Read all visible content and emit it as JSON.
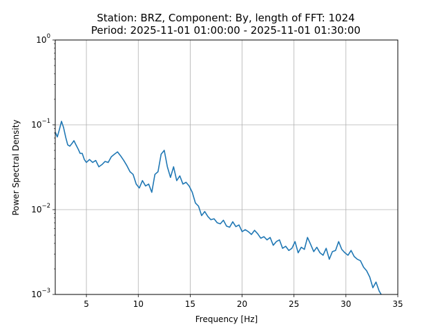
{
  "chart_data": {
    "type": "line",
    "title_line1": "Station: BRZ, Component: By, length of FFT: 1024",
    "title_line2": "Period: 2025-11-01 01:00:00 - 2025-11-01 01:30:00",
    "xlabel": "Frequency [Hz]",
    "ylabel": "Power Spectral Density",
    "xlim": [
      2.0,
      35.0
    ],
    "ylim": [
      0.001,
      1.0
    ],
    "yscale": "log",
    "grid": true,
    "x_ticks": [
      5,
      10,
      15,
      20,
      25,
      30,
      35
    ],
    "x_tick_labels": [
      "5",
      "10",
      "15",
      "20",
      "25",
      "30",
      "35"
    ],
    "y_ticks": [
      0.001,
      0.01,
      0.1,
      1
    ],
    "y_tick_labels": [
      {
        "base": "10",
        "exp": "−3"
      },
      {
        "base": "10",
        "exp": "−2"
      },
      {
        "base": "10",
        "exp": "−1"
      },
      {
        "base": "10",
        "exp": "0"
      }
    ],
    "line_color": "#1f77b4",
    "series": [
      {
        "x": [
          2.0,
          2.2,
          2.4,
          2.6,
          2.8,
          3.0,
          3.2,
          3.4,
          3.6,
          3.8,
          4.0,
          4.2,
          4.4,
          4.6,
          4.8,
          5.0,
          5.3,
          5.6,
          5.9,
          6.2,
          6.5,
          6.8,
          7.1,
          7.4,
          7.7,
          8.0,
          8.3,
          8.6,
          8.9,
          9.2,
          9.5,
          9.8,
          10.1,
          10.4,
          10.7,
          11.0,
          11.3,
          11.6,
          11.9,
          12.2,
          12.5,
          12.8,
          13.1,
          13.4,
          13.7,
          14.0,
          14.3,
          14.6,
          14.9,
          15.2,
          15.5,
          15.8,
          16.1,
          16.4,
          16.7,
          17.0,
          17.3,
          17.6,
          17.9,
          18.2,
          18.5,
          18.8,
          19.1,
          19.4,
          19.7,
          20.0,
          20.3,
          20.6,
          20.9,
          21.2,
          21.5,
          21.8,
          22.1,
          22.4,
          22.7,
          23.0,
          23.3,
          23.6,
          23.9,
          24.2,
          24.5,
          24.8,
          25.1,
          25.4,
          25.7,
          26.0,
          26.3,
          26.6,
          26.9,
          27.2,
          27.5,
          27.8,
          28.1,
          28.4,
          28.7,
          29.0,
          29.3,
          29.6,
          29.9,
          30.2,
          30.5,
          30.8,
          31.1,
          31.4,
          31.7,
          32.0,
          32.3,
          32.6,
          32.9,
          33.2,
          33.4
        ],
        "y": [
          0.082,
          0.072,
          0.088,
          0.11,
          0.093,
          0.072,
          0.058,
          0.056,
          0.06,
          0.065,
          0.058,
          0.052,
          0.046,
          0.046,
          0.039,
          0.036,
          0.039,
          0.036,
          0.038,
          0.032,
          0.034,
          0.037,
          0.036,
          0.042,
          0.045,
          0.048,
          0.043,
          0.038,
          0.033,
          0.028,
          0.026,
          0.02,
          0.018,
          0.022,
          0.019,
          0.02,
          0.016,
          0.026,
          0.028,
          0.045,
          0.05,
          0.032,
          0.024,
          0.032,
          0.022,
          0.025,
          0.02,
          0.021,
          0.019,
          0.016,
          0.012,
          0.011,
          0.0085,
          0.0095,
          0.0083,
          0.0076,
          0.0078,
          0.007,
          0.0068,
          0.0075,
          0.0064,
          0.0062,
          0.0072,
          0.0063,
          0.0066,
          0.0055,
          0.0058,
          0.0055,
          0.0051,
          0.0057,
          0.0052,
          0.0046,
          0.0048,
          0.0044,
          0.0047,
          0.0038,
          0.0042,
          0.0044,
          0.0035,
          0.0037,
          0.0033,
          0.0035,
          0.0042,
          0.0031,
          0.0036,
          0.0034,
          0.0047,
          0.0039,
          0.0032,
          0.0036,
          0.0031,
          0.0029,
          0.0035,
          0.0026,
          0.0032,
          0.0033,
          0.0042,
          0.0034,
          0.0031,
          0.0029,
          0.0033,
          0.0028,
          0.0026,
          0.0025,
          0.0021,
          0.0019,
          0.0016,
          0.0012,
          0.0014,
          0.0011,
          0.001
        ]
      }
    ]
  }
}
